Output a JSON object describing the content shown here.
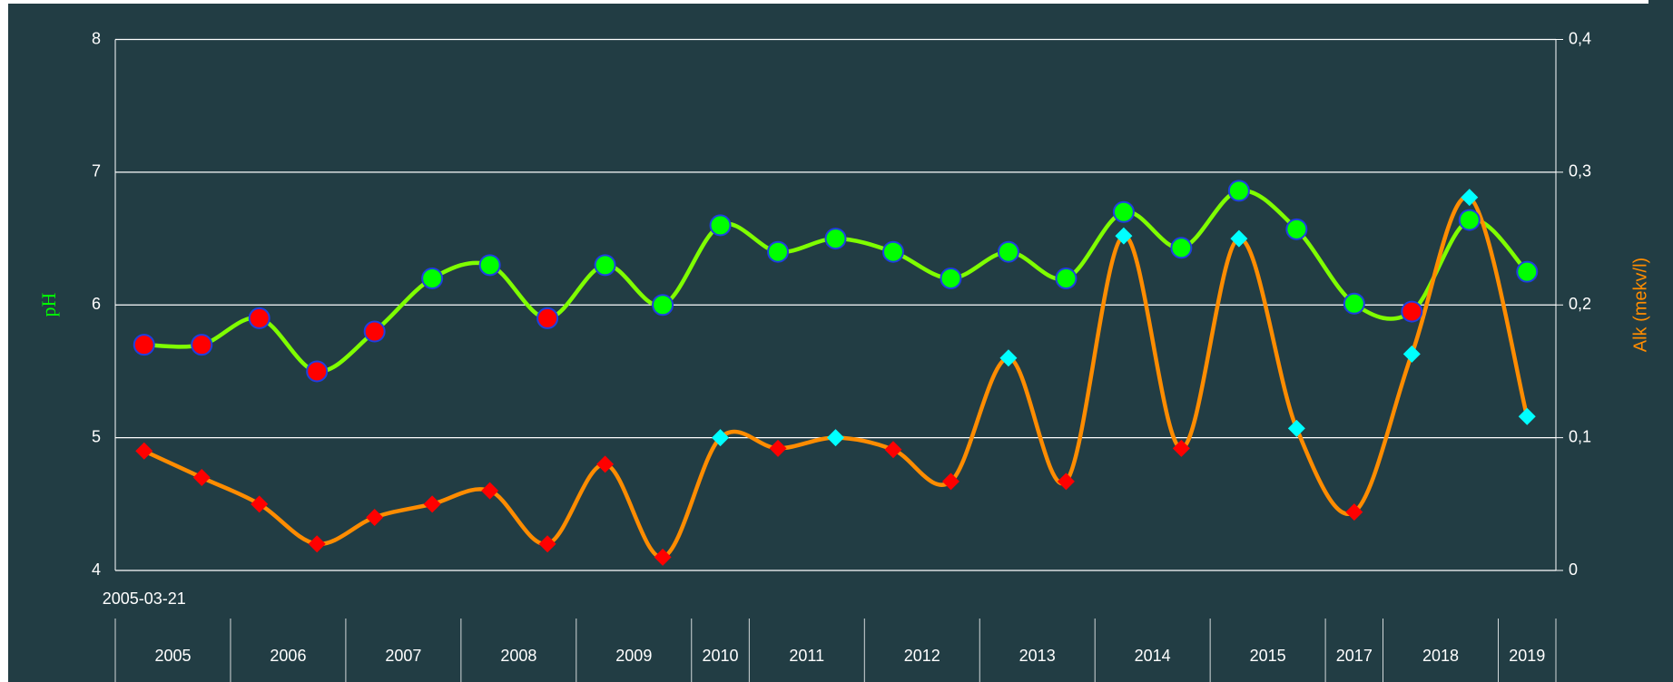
{
  "chart_data": {
    "type": "line",
    "categories": [
      "2005-03-21",
      null,
      null,
      null,
      null,
      null,
      null,
      null,
      null,
      null,
      null,
      null,
      null,
      null,
      null,
      null,
      null,
      null,
      null,
      null,
      null,
      null,
      null,
      null,
      null
    ],
    "x_groups": [
      {
        "label": "2005",
        "count": 2
      },
      {
        "label": "2006",
        "count": 2
      },
      {
        "label": "2007",
        "count": 2
      },
      {
        "label": "2008",
        "count": 2
      },
      {
        "label": "2009",
        "count": 2
      },
      {
        "label": "2010",
        "count": 1
      },
      {
        "label": "2011",
        "count": 2
      },
      {
        "label": "2012",
        "count": 2
      },
      {
        "label": "2013",
        "count": 2
      },
      {
        "label": "2014",
        "count": 2
      },
      {
        "label": "2015",
        "count": 2
      },
      {
        "label": "2017",
        "count": 1
      },
      {
        "label": "2018",
        "count": 2
      },
      {
        "label": "2019",
        "count": 1
      }
    ],
    "ylabel": "pH",
    "y2label": "Alk (mekv/l)",
    "ylim": [
      4,
      8
    ],
    "yticks": [
      4,
      5,
      6,
      7,
      8
    ],
    "y2lim": [
      0,
      0.4
    ],
    "y2ticks": [
      0,
      {
        "value": 0.1,
        "label": "0,1"
      },
      {
        "value": 0.2,
        "label": "0,2"
      },
      {
        "value": 0.3,
        "label": "0,3"
      },
      {
        "value": 0.4,
        "label": "0,4"
      }
    ],
    "grid": true,
    "series": [
      {
        "name": "pH",
        "color": "#7fff00",
        "marker": "circle",
        "values": [
          5.7,
          5.7,
          5.9,
          5.5,
          5.8,
          6.2,
          6.3,
          5.9,
          6.3,
          6.0,
          6.6,
          6.4,
          6.5,
          6.4,
          6.2,
          6.4,
          6.2,
          6.7,
          6.43,
          6.86,
          6.57,
          6.01,
          5.95,
          6.64,
          6.25
        ],
        "marker_colors": [
          "#ff0000",
          "#ff0000",
          "#ff0000",
          "#ff0000",
          "#ff0000",
          "#00ff00",
          "#00ff00",
          "#ff0000",
          "#00ff00",
          "#00ff00",
          "#00ff00",
          "#00ff00",
          "#00ff00",
          "#00ff00",
          "#00ff00",
          "#00ff00",
          "#00ff00",
          "#00ff00",
          "#00ff00",
          "#00ff00",
          "#00ff00",
          "#00ff00",
          "#ff0000",
          "#00ff00",
          "#00ff00"
        ]
      },
      {
        "name": "Alk (mekv/l)",
        "color": "#ff8c00",
        "marker": "diamond",
        "axis": "y2",
        "values": [
          0.09,
          0.07,
          0.05,
          0.02,
          0.04,
          0.05,
          0.06,
          0.02,
          0.08,
          0.01,
          0.1,
          0.092,
          0.1,
          0.091,
          0.067,
          0.16,
          0.067,
          0.252,
          0.092,
          0.25,
          0.107,
          0.044,
          0.163,
          0.281,
          0.116
        ],
        "marker_colors": [
          "#ff0000",
          "#ff0000",
          "#ff0000",
          "#ff0000",
          "#ff0000",
          "#ff0000",
          "#ff0000",
          "#ff0000",
          "#ff0000",
          "#ff0000",
          "#00ffff",
          "#ff0000",
          "#00ffff",
          "#ff0000",
          "#ff0000",
          "#00ffff",
          "#ff0000",
          "#00ffff",
          "#ff0000",
          "#00ffff",
          "#00ffff",
          "#ff0000",
          "#00ffff",
          "#00ffff",
          "#00ffff"
        ]
      }
    ]
  }
}
